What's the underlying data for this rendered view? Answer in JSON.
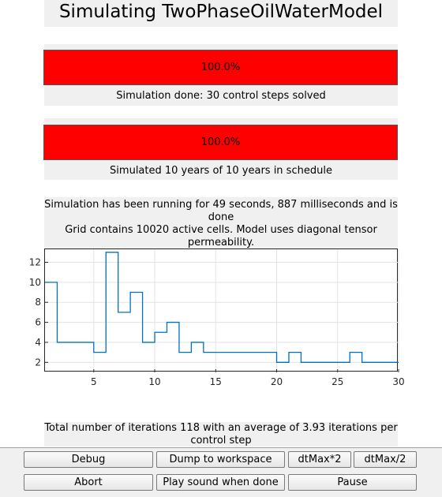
{
  "title": "Simulating TwoPhaseOilWaterModel",
  "progress1": {
    "label": "100.0%",
    "value": 1.0,
    "color": "#ff0000"
  },
  "status1": "Simulation done: 30 control steps solved",
  "progress2": {
    "label": "100.0%",
    "value": 1.0,
    "color": "#ff0000"
  },
  "status2": "Simulated 10 years of 10 years in schedule",
  "info": {
    "running": "Simulation has been running for 49 seconds, 887 milliseconds and is done",
    "grid": "Grid contains 10020 active cells. Model uses diagonal tensor permeability."
  },
  "chart_data": {
    "type": "line",
    "step": true,
    "x": [
      1,
      2,
      3,
      4,
      5,
      6,
      7,
      8,
      9,
      10,
      11,
      12,
      13,
      14,
      15,
      16,
      17,
      18,
      19,
      20,
      21,
      22,
      23,
      24,
      25,
      26,
      27,
      28,
      29,
      30
    ],
    "y": [
      10,
      4,
      4,
      4,
      3,
      13,
      7,
      9,
      4,
      5,
      6,
      3,
      4,
      3,
      3,
      3,
      3,
      3,
      3,
      2,
      3,
      2,
      2,
      2,
      2,
      3,
      2,
      2,
      2,
      2
    ],
    "xlim": [
      1,
      30
    ],
    "ylim": [
      1,
      13.3
    ],
    "xticks": [
      "5",
      "10",
      "15",
      "20",
      "25",
      "30"
    ],
    "yticks": [
      "2",
      "4",
      "6",
      "8",
      "10",
      "12"
    ],
    "grid": true,
    "line_color": "#0072bd"
  },
  "summary": "Total number of iterations 118 with an average of 3.93 iterations per control step",
  "buttons": {
    "debug": "Debug",
    "dump": "Dump to workspace",
    "dtmax_up": "dtMax*2",
    "dtmax_down": "dtMax/2",
    "abort": "Abort",
    "play_sound": "Play sound when done",
    "pause": "Pause"
  }
}
